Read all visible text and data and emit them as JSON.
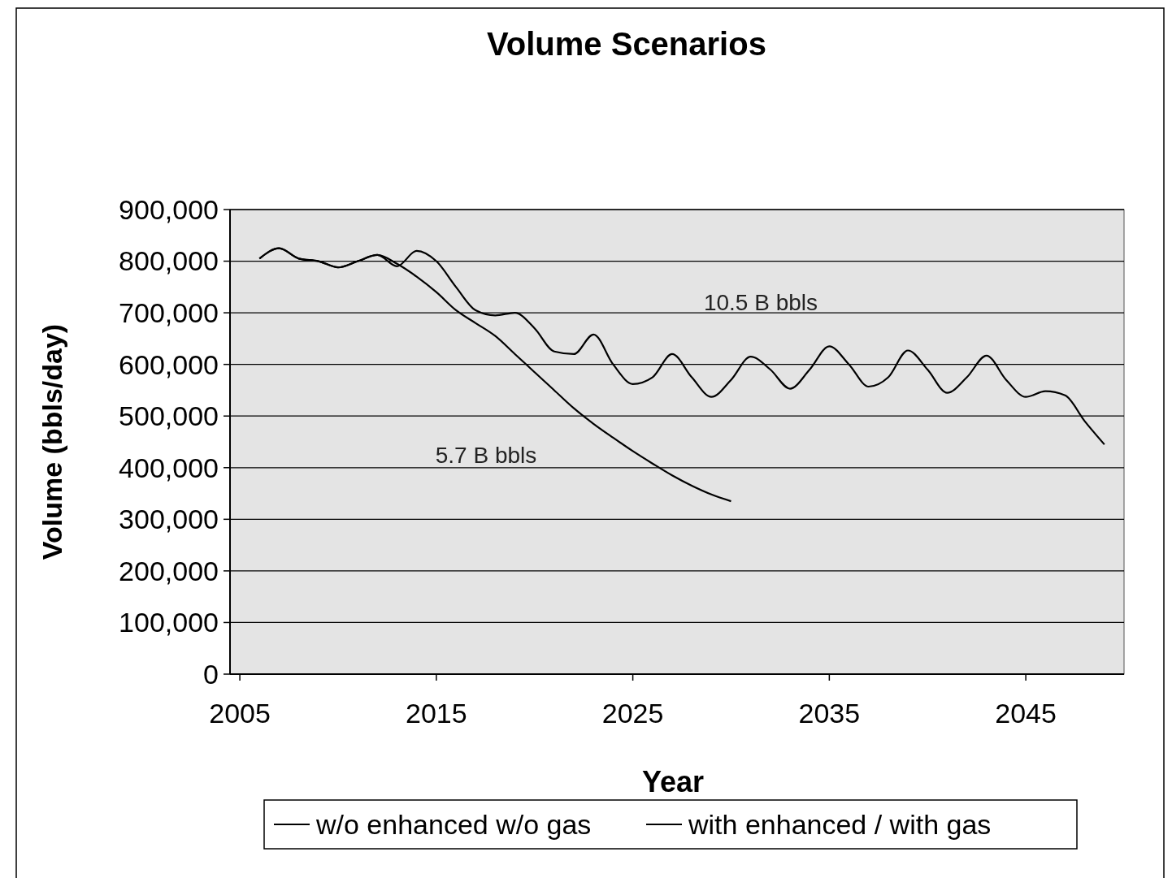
{
  "chart_data": {
    "type": "line",
    "title": "Volume Scenarios",
    "xlabel": "Year",
    "ylabel": "Volume (bbls/day)",
    "x": [
      2006,
      2007,
      2008,
      2009,
      2010,
      2011,
      2012,
      2013,
      2014,
      2015,
      2016,
      2017,
      2018,
      2019,
      2020,
      2021,
      2022,
      2023,
      2024,
      2025,
      2026,
      2027,
      2028,
      2029,
      2030,
      2031,
      2032,
      2033,
      2034,
      2035,
      2036,
      2037,
      2038,
      2039,
      2040,
      2041,
      2042,
      2043,
      2044,
      2045,
      2046,
      2047,
      2048,
      2049
    ],
    "series": [
      {
        "name": "w/o enhanced w/o gas",
        "color": "#000000",
        "x": [
          2006,
          2007,
          2008,
          2009,
          2010,
          2011,
          2012,
          2013,
          2014,
          2015,
          2016,
          2017,
          2018,
          2019,
          2020,
          2021,
          2022,
          2023,
          2024,
          2025,
          2026,
          2027,
          2028,
          2029,
          2030
        ],
        "values": [
          805000,
          825000,
          805000,
          800000,
          788000,
          800000,
          812000,
          795000,
          770000,
          740000,
          705000,
          680000,
          655000,
          620000,
          585000,
          550000,
          515000,
          485000,
          458000,
          432000,
          408000,
          385000,
          365000,
          348000,
          335000
        ]
      },
      {
        "name": "with enhanced / with gas",
        "color": "#000000",
        "values": [
          805000,
          825000,
          805000,
          800000,
          788000,
          800000,
          812000,
          790000,
          820000,
          800000,
          750000,
          705000,
          695000,
          700000,
          670000,
          625000,
          620000,
          658000,
          600000,
          562000,
          575000,
          620000,
          575000,
          537000,
          570000,
          615000,
          590000,
          553000,
          590000,
          635000,
          600000,
          557000,
          575000,
          627000,
          590000,
          545000,
          575000,
          617000,
          570000,
          537000,
          548000,
          540000,
          490000,
          445000
        ]
      }
    ],
    "xlim": [
      2004.5,
      2050
    ],
    "xticks": [
      2005,
      2015,
      2025,
      2035,
      2045
    ],
    "ylim": [
      0,
      900000
    ],
    "yticks": [
      {
        "value": 0,
        "label": "0"
      },
      {
        "value": 100000,
        "label": "100,000"
      },
      {
        "value": 200000,
        "label": "200,000"
      },
      {
        "value": 300000,
        "label": "300,000"
      },
      {
        "value": 400000,
        "label": "400,000"
      },
      {
        "value": 500000,
        "label": "500,000"
      },
      {
        "value": 600000,
        "label": "600,000"
      },
      {
        "value": 700000,
        "label": "700,000"
      },
      {
        "value": 800000,
        "label": "800,000"
      },
      {
        "value": 900000,
        "label": "900,000"
      }
    ],
    "grid": "y",
    "legend": "bottom",
    "marker": "none",
    "line_style": "solid",
    "annotations": [
      "10.5 B bbls",
      "5.7 B bbls"
    ]
  }
}
